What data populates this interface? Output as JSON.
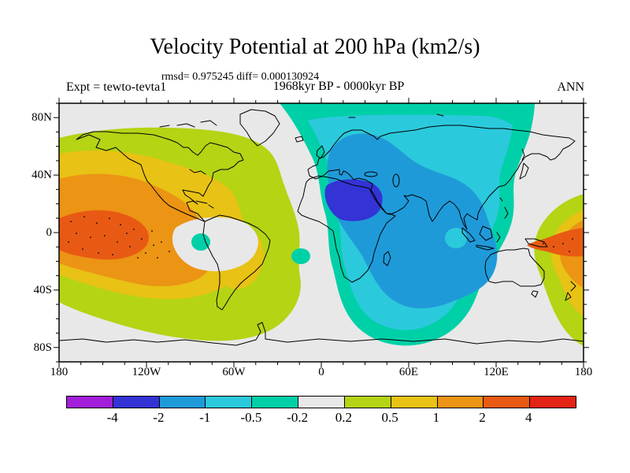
{
  "header": {
    "title": "Velocity Potential at 200 hPa (km2/s)",
    "stats_line": "rmsd= 0.975245 diff= 0.000130924",
    "period_line": "1968kyr BP - 0000kyr BP",
    "expt_label": "Expt = tewto-tevta1",
    "season_label": "ANN"
  },
  "palette": {
    "purple": "#A21ED9",
    "royal_blue": "#3333D6",
    "light_blue": "#1F9AD9",
    "cyan": "#2BC9DC",
    "turquoise": "#00D0A8",
    "gray": "#E8E8E8",
    "yellow_green": "#B4D414",
    "gold": "#E8C214",
    "orange": "#EC9414",
    "red_orange": "#E85A14",
    "red": "#E32313"
  },
  "axes": {
    "lon": {
      "major": [
        {
          "deg": -180,
          "label": "180"
        },
        {
          "deg": -120,
          "label": "120W"
        },
        {
          "deg": -60,
          "label": "60W"
        },
        {
          "deg": 0,
          "label": "0"
        },
        {
          "deg": 60,
          "label": "60E"
        },
        {
          "deg": 120,
          "label": "120E"
        },
        {
          "deg": 180,
          "label": "180"
        }
      ],
      "minor_step_deg": 15,
      "range_deg": [
        -180,
        180
      ]
    },
    "lat": {
      "major": [
        {
          "deg": 80,
          "label": "80N"
        },
        {
          "deg": 40,
          "label": "40N"
        },
        {
          "deg": 0,
          "label": "0"
        },
        {
          "deg": -40,
          "label": "40S"
        },
        {
          "deg": -80,
          "label": "80S"
        }
      ],
      "minor_step_deg": 10,
      "range_deg": [
        -90,
        90
      ]
    }
  },
  "colorbar": {
    "boundary_labels": [
      "-4",
      "-2",
      "-1",
      "-0.5",
      "-0.2",
      "0.2",
      "0.5",
      "1",
      "2",
      "4"
    ],
    "segment_colors": [
      "#A21ED9",
      "#3333D6",
      "#1F9AD9",
      "#2BC9DC",
      "#00D0A8",
      "#E8E8E8",
      "#B4D414",
      "#E8C214",
      "#EC9414",
      "#E85A14",
      "#E32313"
    ]
  },
  "map": {
    "stipple_points": [
      [
        15,
        150
      ],
      [
        32,
        144
      ],
      [
        48,
        152
      ],
      [
        64,
        146
      ],
      [
        78,
        154
      ],
      [
        95,
        160
      ],
      [
        22,
        165
      ],
      [
        40,
        170
      ],
      [
        58,
        168
      ],
      [
        74,
        176
      ],
      [
        90,
        182
      ],
      [
        105,
        172
      ],
      [
        120,
        180
      ],
      [
        30,
        185
      ],
      [
        50,
        190
      ],
      [
        68,
        192
      ],
      [
        110,
        190
      ],
      [
        130,
        176
      ],
      [
        12,
        176
      ],
      [
        86,
        165
      ],
      [
        100,
        196
      ],
      [
        125,
        196
      ],
      [
        140,
        188
      ],
      [
        118,
        162
      ],
      [
        640,
        178
      ],
      [
        652,
        172
      ],
      [
        628,
        182
      ],
      [
        615,
        178
      ],
      [
        648,
        188
      ]
    ]
  },
  "chart_data": {
    "type": "heatmap",
    "title": "Velocity Potential at 200 hPa (km2/s)",
    "subtitle": "1968kyr BP - 0000kyr BP",
    "stats": {
      "rmsd": 0.975245,
      "diff": 0.000130924
    },
    "experiment": "tewto-tevta1",
    "season": "ANN",
    "units": "km2/s",
    "projection": "equirectangular world map, 180W-180E, 90S-90N",
    "xlabel_ticks": [
      "180",
      "120W",
      "60W",
      "0",
      "60E",
      "120E",
      "180"
    ],
    "ylabel_ticks": [
      "80N",
      "40N",
      "0",
      "40S",
      "80S"
    ],
    "contour_levels": [
      -4,
      -2,
      -1,
      -0.5,
      -0.2,
      0.2,
      0.5,
      1,
      2,
      4
    ],
    "legend_position": "bottom horizontal colorbar",
    "features": [
      {
        "name": "positive anomaly center, eastern Pacific / Americas",
        "approx_lon": -150,
        "approx_lat": -2,
        "peak_band": "2 to 4"
      },
      {
        "name": "positive anomaly center, western Pacific near date line",
        "approx_lon": 175,
        "approx_lat": -8,
        "peak_band": "2 to 4"
      },
      {
        "name": "negative anomaly center, North Africa / Mediterranean",
        "approx_lon": 12,
        "approx_lat": 25,
        "peak_band": "-4 to -2"
      },
      {
        "name": "negative envelope covering Europe, Asia, Indian Ocean",
        "peak_band": "-2 to -1"
      },
      {
        "name": "small negative turquoise patch west of Peru",
        "approx_lon": -83,
        "approx_lat": -5,
        "peak_band": "-0.5 to -0.2"
      },
      {
        "name": "small negative turquoise patch, South Atlantic",
        "approx_lon": -14,
        "approx_lat": -17,
        "peak_band": "-0.5 to -0.2"
      },
      {
        "name": "neutral gray band (-0.2 to 0.2) over Atlantic, Arctic, Southern Ocean, NE Pacific"
      }
    ]
  }
}
